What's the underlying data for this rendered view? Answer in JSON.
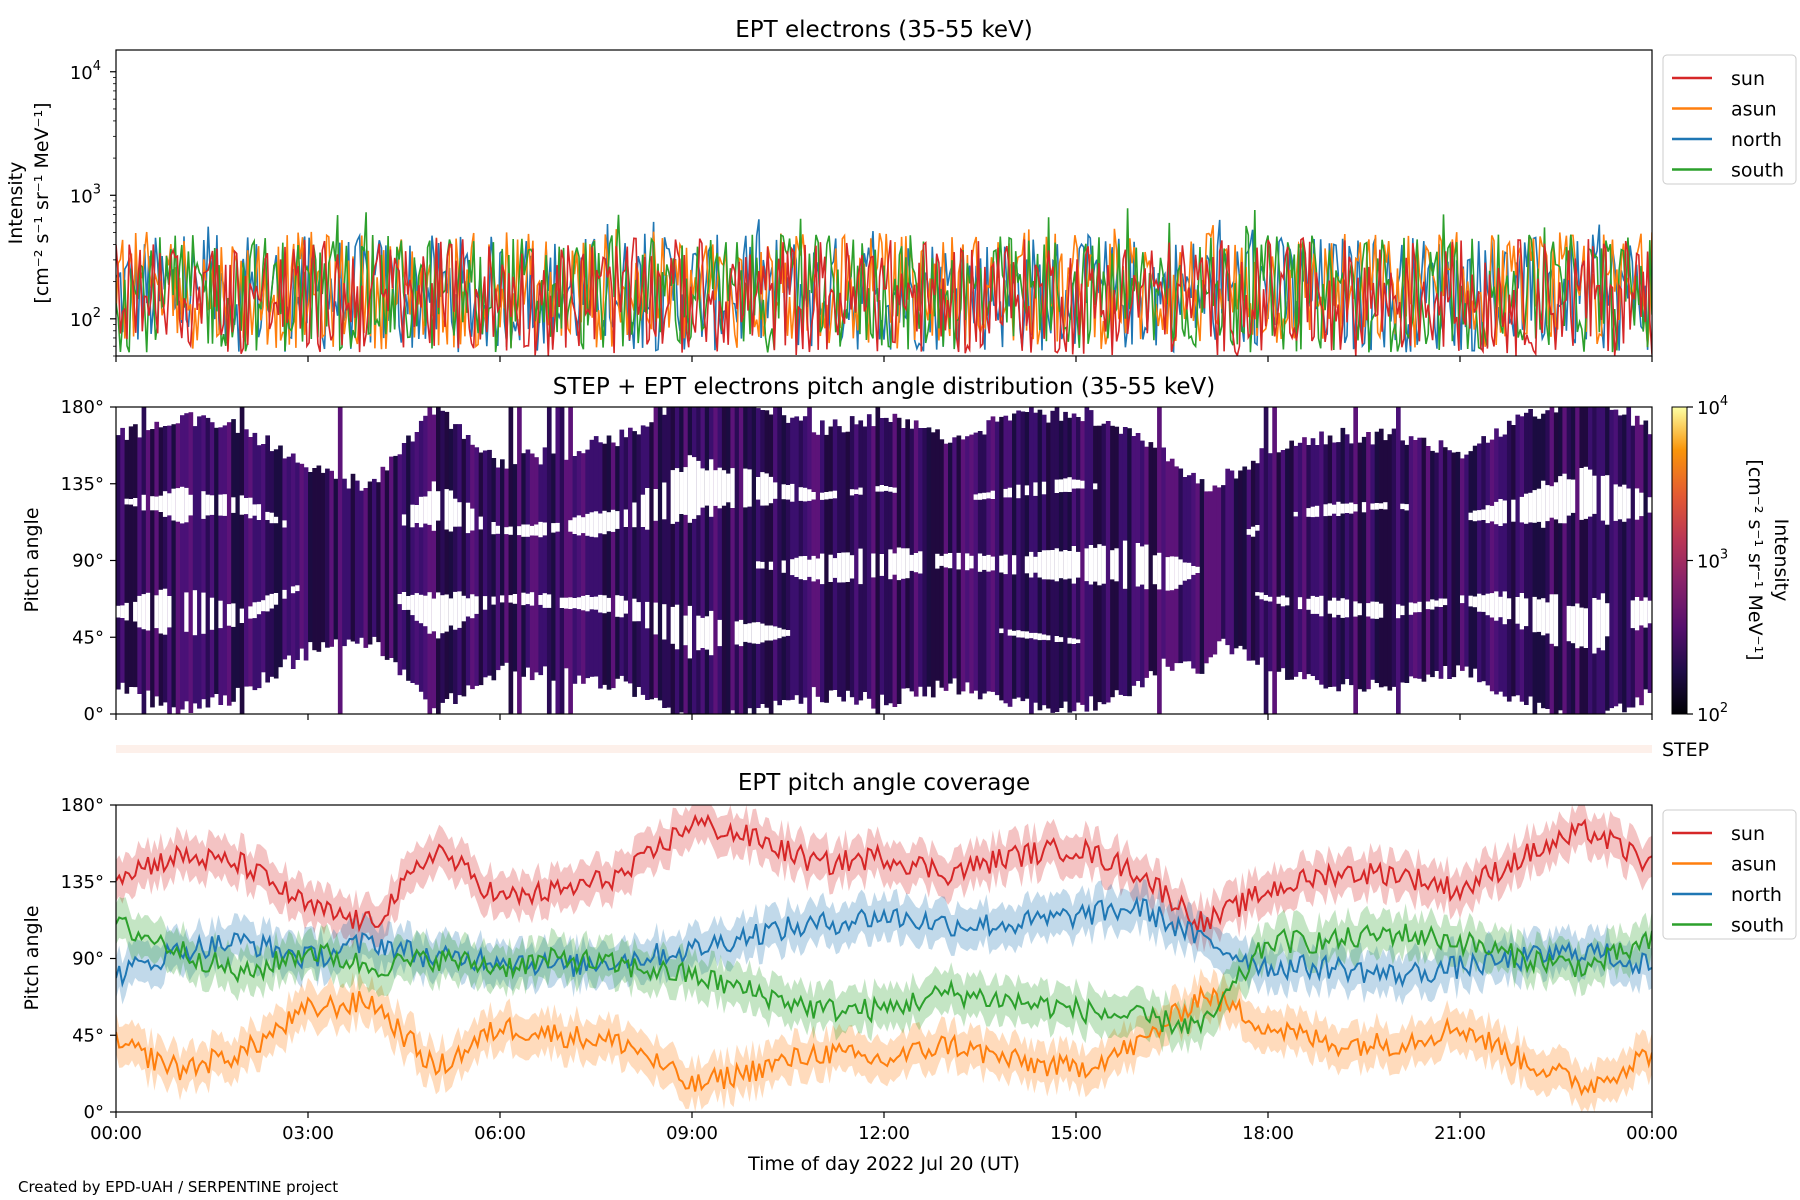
{
  "credit": "Created by EPD-UAH / SERPENTINE project",
  "colors": {
    "sun": "#d62728",
    "asun": "#ff7f0e",
    "north": "#1f77b4",
    "south": "#2ca02c",
    "step_strip": "#fdf0ea"
  },
  "chart_data": [
    {
      "type": "line",
      "title": "EPT electrons (35-55 keV)",
      "ylabel_line1": "Intensity",
      "ylabel_line2": "[cm⁻² s⁻¹ sr⁻¹ MeV⁻¹]",
      "yscale": "log",
      "ylim": [
        50,
        15000
      ],
      "yticks": [
        {
          "value": 100,
          "base": "10",
          "exp": "2"
        },
        {
          "value": 1000,
          "base": "10",
          "exp": "3"
        },
        {
          "value": 10000,
          "base": "10",
          "exp": "4"
        }
      ],
      "xlim": [
        "2022-07-20 00:00",
        "2022-07-21 00:00"
      ],
      "legend": "right-outside-top",
      "series": [
        {
          "name": "sun",
          "color": "#d62728",
          "typical": 150,
          "peak": 450
        },
        {
          "name": "asun",
          "color": "#ff7f0e",
          "typical": 170,
          "peak": 600
        },
        {
          "name": "north",
          "color": "#1f77b4",
          "typical": 160,
          "peak": 650
        },
        {
          "name": "south",
          "color": "#2ca02c",
          "typical": 160,
          "peak": 800
        }
      ]
    },
    {
      "type": "heatmap",
      "title": "STEP + EPT electrons pitch angle distribution (35-55 keV)",
      "ylabel": "Pitch angle",
      "ylim": [
        0,
        180
      ],
      "yticks": [
        "0°",
        "45°",
        "90°",
        "135°",
        "180°"
      ],
      "colorbar": {
        "label_line1": "Intensity",
        "label_line2": "[cm⁻² s⁻¹ sr⁻¹ MeV⁻¹]",
        "scale": "log",
        "range": [
          100,
          10000
        ],
        "ticks": [
          {
            "base": "10",
            "exp": "2"
          },
          {
            "base": "10",
            "exp": "3"
          },
          {
            "base": "10",
            "exp": "4"
          }
        ]
      },
      "typical_intensity": 250,
      "empty_bins": "white"
    },
    {
      "type": "table",
      "label": "STEP",
      "color": "#fdf0ea"
    },
    {
      "type": "line",
      "title": "EPT pitch angle coverage",
      "ylabel": "Pitch angle",
      "ylim": [
        0,
        180
      ],
      "yticks": [
        "0°",
        "45°",
        "90°",
        "135°",
        "180°"
      ],
      "xlabel": "Time of day 2022 Jul 20 (UT)",
      "xticks": [
        "00:00",
        "03:00",
        "06:00",
        "09:00",
        "12:00",
        "15:00",
        "18:00",
        "21:00",
        "00:00"
      ],
      "shaded_band_half_width_deg": 12,
      "legend": "right-outside-top",
      "series": [
        {
          "name": "sun",
          "color": "#d62728",
          "hours": [
            0,
            1,
            2,
            3,
            4,
            5,
            6,
            7,
            8,
            9,
            10,
            11,
            12,
            13,
            14,
            15,
            16,
            17,
            18,
            19,
            20,
            21,
            22,
            23,
            24
          ],
          "values": [
            140,
            150,
            145,
            120,
            110,
            155,
            125,
            130,
            140,
            170,
            160,
            145,
            150,
            140,
            150,
            155,
            140,
            110,
            130,
            140,
            140,
            130,
            150,
            165,
            145
          ]
        },
        {
          "name": "asun",
          "color": "#ff7f0e",
          "hours": [
            0,
            1,
            2,
            3,
            4,
            5,
            6,
            7,
            8,
            9,
            10,
            11,
            12,
            13,
            14,
            15,
            16,
            17,
            18,
            19,
            20,
            21,
            22,
            23,
            24
          ],
          "values": [
            40,
            25,
            35,
            60,
            65,
            25,
            50,
            45,
            40,
            15,
            25,
            35,
            30,
            40,
            30,
            25,
            40,
            70,
            50,
            40,
            40,
            50,
            30,
            15,
            35
          ]
        },
        {
          "name": "north",
          "color": "#1f77b4",
          "hours": [
            0,
            1,
            2,
            3,
            4,
            5,
            6,
            7,
            8,
            9,
            10,
            11,
            12,
            13,
            14,
            15,
            16,
            17,
            18,
            19,
            20,
            21,
            22,
            23,
            24
          ],
          "values": [
            80,
            95,
            100,
            90,
            100,
            90,
            90,
            85,
            90,
            95,
            105,
            110,
            115,
            110,
            110,
            115,
            120,
            100,
            85,
            85,
            80,
            85,
            90,
            95,
            85
          ]
        },
        {
          "name": "south",
          "color": "#2ca02c",
          "hours": [
            0,
            1,
            2,
            3,
            4,
            5,
            6,
            7,
            8,
            9,
            10,
            11,
            12,
            13,
            14,
            15,
            16,
            17,
            18,
            19,
            20,
            21,
            22,
            23,
            24
          ],
          "values": [
            110,
            95,
            80,
            95,
            85,
            90,
            85,
            90,
            85,
            80,
            70,
            60,
            60,
            70,
            65,
            60,
            55,
            50,
            100,
            100,
            105,
            100,
            90,
            85,
            100
          ]
        }
      ]
    }
  ]
}
